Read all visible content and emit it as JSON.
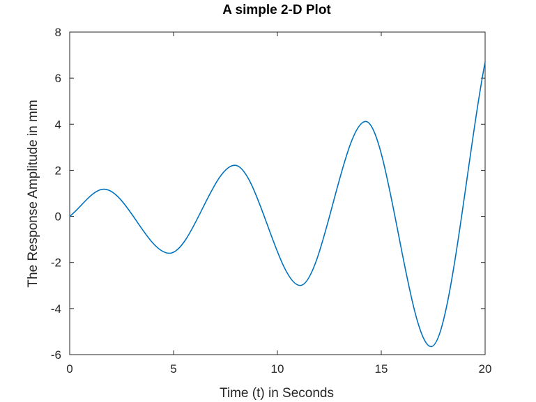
{
  "chart_data": {
    "type": "line",
    "title": "A simple 2-D Plot",
    "xlabel": "Time (t) in Seconds",
    "ylabel": "The Response Amplitude in mm",
    "xlim": [
      0,
      20
    ],
    "ylim": [
      -6,
      8
    ],
    "xticks": [
      0,
      5,
      10,
      15,
      20
    ],
    "yticks": [
      -6,
      -4,
      -2,
      0,
      2,
      4,
      6,
      8
    ],
    "grid": false,
    "line_color": "#0072bd",
    "series": [
      {
        "x": [
          0,
          1.65,
          4.8,
          7.95,
          11.1,
          14.25,
          17.4,
          20
        ],
        "y": [
          0,
          1.18,
          -1.6,
          2.22,
          -3.0,
          4.12,
          -5.65,
          6.7
        ]
      }
    ]
  }
}
